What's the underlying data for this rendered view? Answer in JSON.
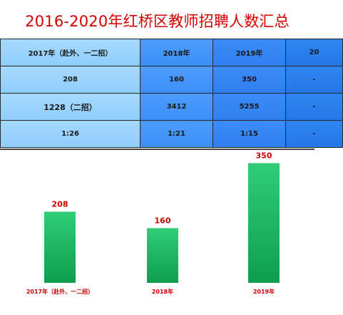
{
  "title": "2016-2020年红桥区教师招聘人数汇总",
  "table": {
    "rows": [
      [
        "2017年（赴外、一二招）",
        "2018年",
        "2019年",
        "20"
      ],
      [
        "208",
        "160",
        "350",
        "-"
      ],
      [
        "1228（二招）",
        "3412",
        "5255",
        "-"
      ],
      [
        "1:26",
        "1:21",
        "1:15",
        "-"
      ]
    ]
  },
  "chart_data": {
    "type": "bar",
    "categories": [
      "2017年（赴外、一二招）",
      "2018年",
      "2019年"
    ],
    "values": [
      208,
      160,
      350
    ],
    "title": "",
    "xlabel": "",
    "ylabel": "",
    "ylim": [
      0,
      380
    ],
    "grid": false,
    "legend": "none",
    "colors": {
      "bar_top": "#2fce76",
      "bar_bottom": "#0f9d4f",
      "label": "#cc0000"
    }
  }
}
